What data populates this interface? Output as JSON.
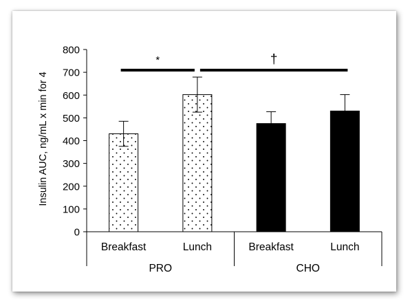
{
  "chart_data": {
    "type": "bar",
    "title": "",
    "ylabel": "Insulin AUC, ng/mL x min for 4",
    "xlabel": "",
    "ylim": [
      0,
      800
    ],
    "yticks": [
      "0",
      "100",
      "200",
      "300",
      "400",
      "500",
      "600",
      "700",
      "800"
    ],
    "groups": [
      {
        "label": "PRO",
        "categories": [
          "Breakfast",
          "Lunch"
        ]
      },
      {
        "label": "CHO",
        "categories": [
          "Breakfast",
          "Lunch"
        ]
      }
    ],
    "bars": [
      {
        "group": "PRO",
        "category": "Breakfast",
        "value": 430,
        "error": 55,
        "fill": "dotted"
      },
      {
        "group": "PRO",
        "category": "Lunch",
        "value": 602,
        "error": 77,
        "fill": "dotted"
      },
      {
        "group": "CHO",
        "category": "Breakfast",
        "value": 475,
        "error": 52,
        "fill": "solid"
      },
      {
        "group": "CHO",
        "category": "Lunch",
        "value": 530,
        "error": 72,
        "fill": "solid"
      }
    ],
    "annotations": [
      {
        "symbol": "*",
        "from_bar": 0,
        "to_bar": 1
      },
      {
        "symbol": "†",
        "from_bar": 1,
        "to_bar": 3
      }
    ],
    "grid": false,
    "legend": "none"
  }
}
